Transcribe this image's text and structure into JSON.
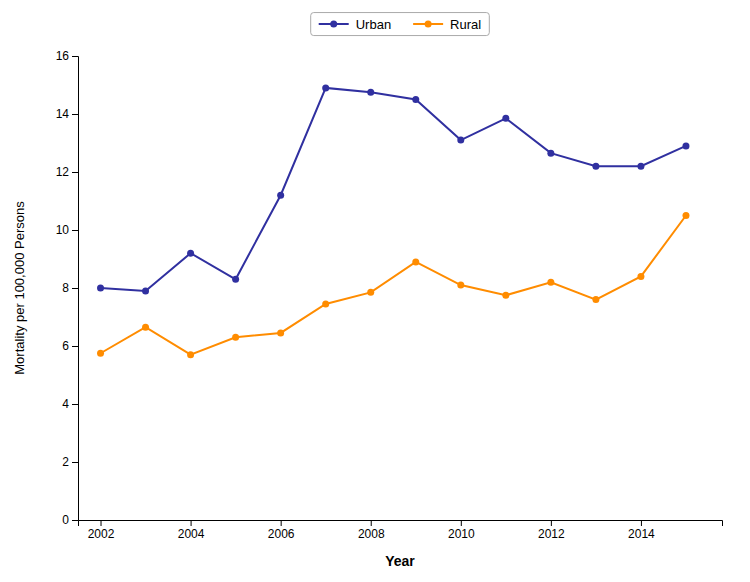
{
  "chart_data": {
    "type": "line",
    "xlabel": "Year",
    "ylabel": "Mortality per 100,000 Persons",
    "x": [
      2002,
      2003,
      2004,
      2005,
      2006,
      2007,
      2008,
      2009,
      2010,
      2011,
      2012,
      2013,
      2014,
      2015
    ],
    "series": [
      {
        "name": "Urban",
        "color": "#3030a0",
        "marker": "circle",
        "values": [
          8.0,
          7.9,
          9.2,
          8.3,
          11.2,
          14.9,
          14.75,
          14.5,
          13.1,
          13.85,
          12.65,
          12.2,
          12.2,
          12.9
        ]
      },
      {
        "name": "Rural",
        "color": "#ff8c00",
        "marker": "circle",
        "values": [
          5.75,
          6.65,
          5.7,
          6.3,
          6.45,
          7.45,
          7.85,
          8.9,
          8.1,
          7.75,
          8.2,
          7.6,
          8.4,
          10.5
        ]
      }
    ],
    "xlim": [
      2001.5,
      2015.8
    ],
    "xticks": [
      2002,
      2004,
      2006,
      2008,
      2010,
      2012,
      2014
    ],
    "ylim": [
      0,
      16
    ],
    "yticks": [
      0,
      2,
      4,
      6,
      8,
      10,
      12,
      14,
      16
    ],
    "grid": false,
    "legend": "top"
  }
}
